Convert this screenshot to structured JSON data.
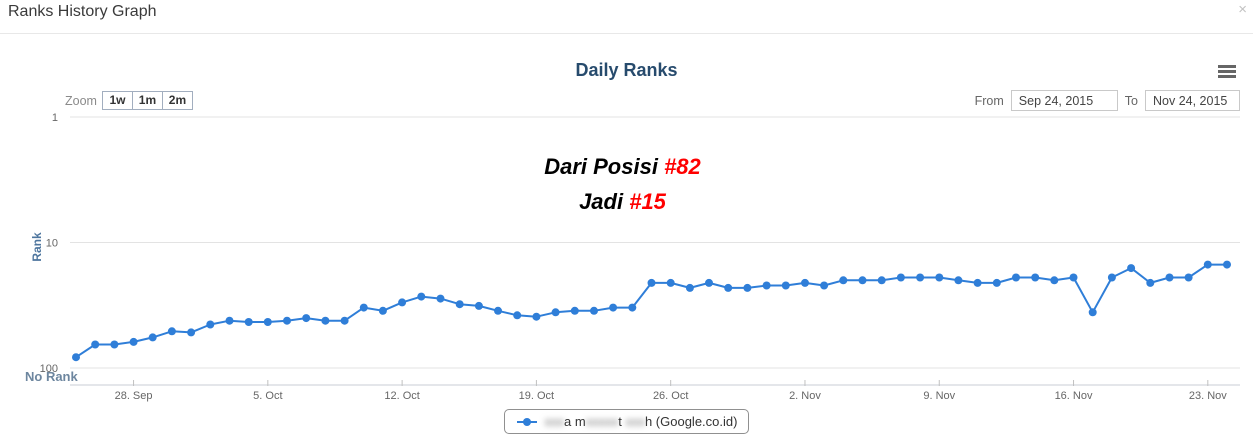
{
  "header": {
    "title": "Ranks History Graph",
    "close_icon": "×"
  },
  "range_selector": {
    "zoom_label": "Zoom",
    "buttons": [
      "1w",
      "1m",
      "2m"
    ],
    "from_label": "From",
    "from_value": "Sep 24, 2015",
    "to_label": "To",
    "to_value": "Nov 24, 2015"
  },
  "chart_data": {
    "type": "line",
    "title": "Daily Ranks",
    "series": [
      {
        "name": "(partially blurred keyword) (Google.co.id)",
        "color": "#2f7ed8",
        "start_date": "2015-09-25",
        "interval": "daily",
        "values": [
          82,
          65,
          65,
          62,
          57,
          51,
          52,
          45,
          42,
          43,
          43,
          42,
          40,
          42,
          42,
          33,
          35,
          30,
          27,
          28,
          31,
          32,
          35,
          38,
          39,
          36,
          35,
          35,
          33,
          33,
          21,
          21,
          23,
          21,
          23,
          23,
          22,
          22,
          21,
          22,
          20,
          20,
          20,
          19,
          19,
          19,
          20,
          21,
          21,
          19,
          19,
          20,
          19,
          36,
          19,
          16,
          21,
          19,
          19,
          15,
          15
        ]
      }
    ],
    "xaxis": {
      "tick_labels": [
        "28. Sep",
        "5. Oct",
        "12. Oct",
        "19. Oct",
        "26. Oct",
        "2. Nov",
        "9. Nov",
        "16. Nov",
        "23. Nov"
      ],
      "tick_days": [
        3,
        10,
        17,
        24,
        31,
        38,
        45,
        52,
        59
      ],
      "range_from": "Sep 24, 2015",
      "range_to": "Nov 24, 2015"
    },
    "yaxis": {
      "title": "Rank",
      "scale": "logarithmic-reversed",
      "tick_labels": [
        "1",
        "10",
        "100"
      ],
      "tick_values": [
        1,
        10,
        100
      ],
      "no_rank_label": "No Rank"
    },
    "legend_position": "bottom-center",
    "grid": "horizontal-only",
    "annotation": {
      "line1": [
        {
          "text": "Dari Posisi ",
          "color": "#000000"
        },
        {
          "text": "#82",
          "color": "#ff0000"
        }
      ],
      "line2": [
        {
          "text": "Jadi ",
          "color": "#000000"
        },
        {
          "text": "#15",
          "color": "#ff0000"
        }
      ]
    }
  },
  "legend": {
    "marker_color": "#2f7ed8",
    "label_segments": [
      {
        "text": "xxx",
        "redacted": true
      },
      {
        "text": "a m",
        "redacted": false
      },
      {
        "text": "xxxxx",
        "redacted": true
      },
      {
        "text": "t ",
        "redacted": false
      },
      {
        "text": "xxx",
        "redacted": true
      },
      {
        "text": "h (Google.co.id)",
        "redacted": false
      }
    ]
  },
  "colors": {
    "series_line": "#2f7ed8",
    "chart_title": "#274b6d",
    "axis_label": "#666666",
    "axis_title": "#4d759e",
    "no_rank_label": "#6d869f",
    "gridline": "#e3e3e3",
    "axis_line": "#c8ced6",
    "annotation_highlight": "#ff0000",
    "legend_border": "#909090"
  }
}
